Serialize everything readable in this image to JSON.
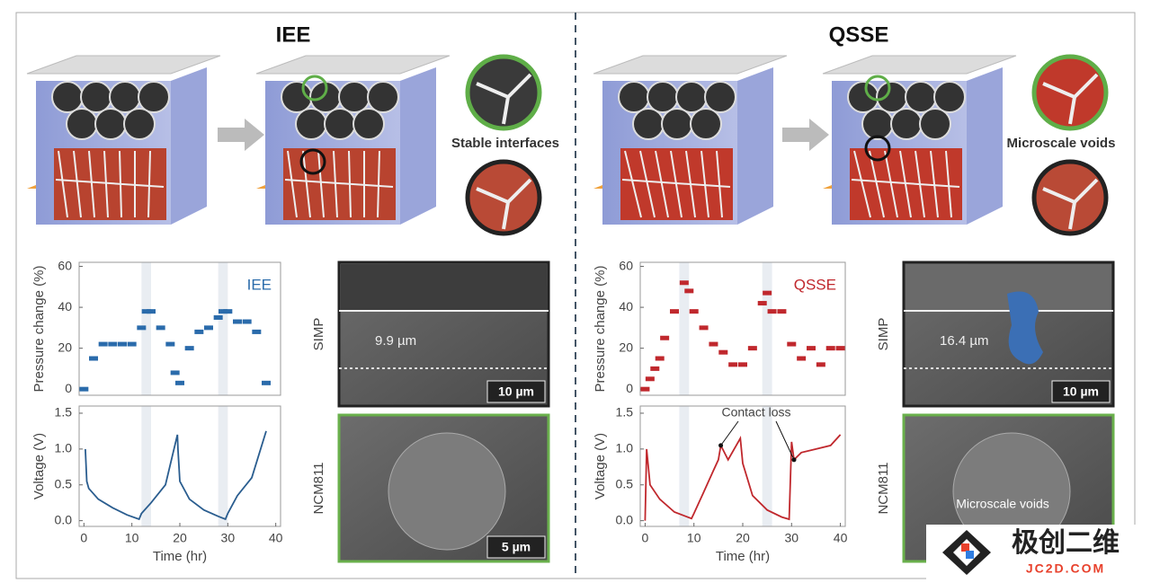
{
  "panels": [
    {
      "title": "IEE",
      "label": "Stable interfaces"
    },
    {
      "title": "QSSE",
      "label": "Microscale voids"
    }
  ],
  "chart_data": [
    {
      "type": "scatter",
      "ylabel": "Pressure change (%)",
      "xlim": [
        -1,
        41
      ],
      "ylim": [
        -3,
        62
      ],
      "yticks": [
        0,
        20,
        40,
        60
      ],
      "bands": [
        [
          12,
          14
        ],
        [
          28,
          30
        ]
      ],
      "x": [
        0,
        2,
        4,
        6,
        8,
        10,
        12,
        13,
        14,
        16,
        18,
        19,
        20,
        22,
        24,
        26,
        28,
        29,
        30,
        32,
        34,
        36,
        38
      ],
      "series": [
        {
          "name": "IEE",
          "color": "#2a6bab",
          "values": [
            0,
            15,
            22,
            22,
            22,
            22,
            30,
            38,
            38,
            30,
            22,
            8,
            3,
            20,
            28,
            30,
            35,
            38,
            38,
            33,
            33,
            28,
            3
          ]
        }
      ]
    },
    {
      "type": "line",
      "ylabel": "Voltage (V)",
      "xlabel": "Time (hr)",
      "xlim": [
        -1,
        41
      ],
      "xticks": [
        0,
        10,
        20,
        30,
        40
      ],
      "ylim": [
        -0.08,
        1.6
      ],
      "yticks": [
        {
          "value": 0,
          "label": "0.0"
        },
        0.5,
        {
          "value": 1,
          "label": "1.0"
        },
        1.5
      ],
      "bands": [
        [
          12,
          14
        ],
        [
          28,
          30
        ]
      ],
      "x": [
        0.3,
        0.6,
        1,
        3,
        6,
        9,
        11.5,
        12,
        14,
        17,
        19.5,
        19.6,
        20,
        22,
        25,
        28,
        29.5,
        30,
        32,
        35,
        38
      ],
      "series": [
        {
          "color": "#2a5d8f",
          "values": [
            1.0,
            0.55,
            0.45,
            0.3,
            0.18,
            0.08,
            0.02,
            0.1,
            0.25,
            0.5,
            1.2,
            1.0,
            0.55,
            0.3,
            0.15,
            0.06,
            0.02,
            0.1,
            0.35,
            0.6,
            1.25
          ]
        }
      ]
    },
    {
      "type": "scatter",
      "ylabel": "Pressure change (%)",
      "xlim": [
        -1,
        41
      ],
      "ylim": [
        -3,
        62
      ],
      "yticks": [
        0,
        20,
        40,
        60
      ],
      "bands": [
        [
          7,
          9
        ],
        [
          24,
          26
        ]
      ],
      "x": [
        0,
        1,
        2,
        3,
        4,
        6,
        8,
        9,
        10,
        12,
        14,
        16,
        18,
        20,
        22,
        24,
        25,
        26,
        28,
        30,
        32,
        34,
        36,
        38,
        40
      ],
      "series": [
        {
          "name": "QSSE",
          "color": "#c0282d",
          "values": [
            0,
            5,
            10,
            15,
            25,
            38,
            52,
            48,
            38,
            30,
            22,
            18,
            12,
            12,
            20,
            42,
            47,
            38,
            38,
            22,
            15,
            20,
            12,
            20,
            20
          ]
        }
      ]
    },
    {
      "type": "line",
      "ylabel": "Voltage (V)",
      "xlabel": "Time (hr)",
      "xlim": [
        -1,
        41
      ],
      "xticks": [
        0,
        10,
        20,
        30,
        40
      ],
      "ylim": [
        -0.08,
        1.6
      ],
      "yticks": [
        {
          "value": 0,
          "label": "0.0"
        },
        0.5,
        {
          "value": 1,
          "label": "1.0"
        },
        1.5
      ],
      "bands": [
        [
          7,
          9
        ],
        [
          24,
          26
        ]
      ],
      "annotation": "Contact loss",
      "x": [
        0,
        0.3,
        1,
        3,
        6,
        9.5,
        10,
        12,
        14,
        15,
        15.5,
        17,
        19.5,
        20,
        22,
        25,
        28,
        29.5,
        30,
        30.5,
        32,
        35,
        38,
        40
      ],
      "series": [
        {
          "color": "#c0282d",
          "values": [
            0,
            1.0,
            0.5,
            0.3,
            0.12,
            0.03,
            0.1,
            0.4,
            0.7,
            0.85,
            1.05,
            0.85,
            1.15,
            0.8,
            0.35,
            0.15,
            0.05,
            0.02,
            1.1,
            0.85,
            0.95,
            1.0,
            1.05,
            1.2
          ]
        }
      ]
    }
  ],
  "sem": [
    {
      "label": "SIMP",
      "thickness": "9.9 µm",
      "scale": "10 µm"
    },
    {
      "label": "NCM811",
      "scale": "5 µm"
    },
    {
      "label": "SIMP",
      "thickness": "16.4 µm",
      "scale": "10 µm"
    },
    {
      "label": "NCM811",
      "annotation": "Microscale voids"
    }
  ],
  "watermark": {
    "name": "极创二维",
    "url": "JC2D.COM"
  }
}
